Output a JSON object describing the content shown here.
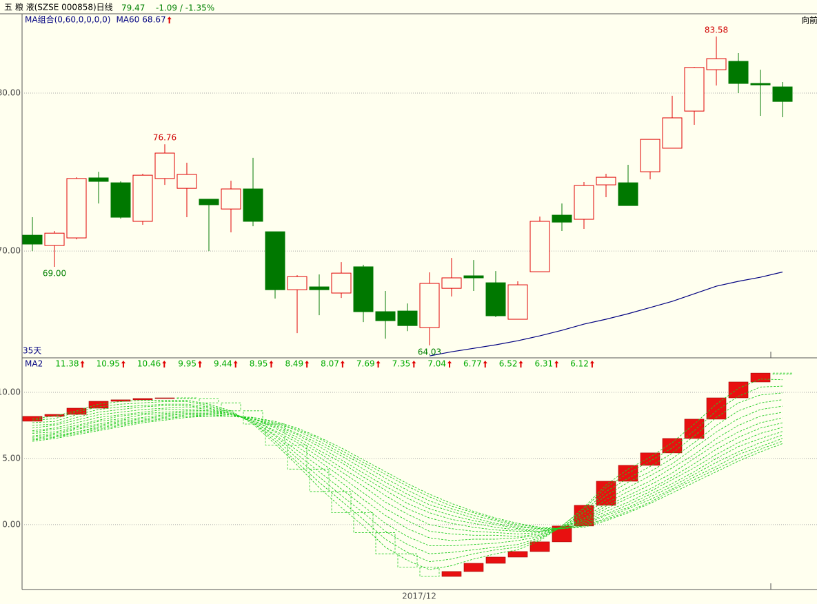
{
  "header": {
    "title": "五 粮 液(SZSE 000858)日线",
    "price": 79.47,
    "change": "-1.09 / -1.35%",
    "nav": "向前"
  },
  "chart_data": [
    {
      "type": "candlestick",
      "subtitle": "MA组合(0,60,0,0,0,0)",
      "period_label": "35天",
      "open": [
        71.0,
        70.35,
        70.83,
        74.63,
        74.32,
        71.88,
        74.59,
        73.97,
        73.28,
        72.66,
        73.93,
        71.22,
        67.55,
        67.73,
        67.34,
        69.0,
        66.16,
        66.2,
        65.15,
        67.64,
        68.43,
        67.99,
        65.68,
        68.69,
        72.27,
        72.01,
        74.19,
        74.32,
        75.02,
        76.51,
        78.86,
        81.48,
        82.01,
        80.61,
        80.39
      ],
      "high": [
        72.14,
        71.27,
        74.67,
        75.02,
        74.41,
        74.89,
        76.76,
        75.59,
        73.28,
        74.45,
        75.9,
        71.22,
        68.47,
        68.52,
        69.3,
        69.13,
        67.47,
        66.68,
        68.65,
        69.56,
        69.43,
        68.73,
        68.08,
        72.18,
        73.01,
        74.37,
        74.89,
        75.46,
        77.07,
        79.83,
        81.66,
        83.58,
        82.53,
        81.48,
        80.7
      ],
      "low": [
        70.0,
        69.0,
        70.74,
        73.01,
        72.05,
        71.66,
        74.19,
        72.14,
        70.0,
        71.18,
        71.57,
        66.99,
        64.8,
        65.94,
        67.03,
        65.5,
        64.45,
        64.93,
        64.03,
        67.12,
        67.47,
        65.81,
        65.68,
        68.69,
        71.27,
        71.4,
        73.41,
        72.88,
        74.54,
        76.51,
        77.99,
        80.48,
        80.0,
        78.56,
        78.47
      ],
      "close": [
        70.44,
        71.13,
        74.59,
        74.41,
        72.14,
        74.8,
        76.2,
        74.85,
        72.93,
        73.93,
        71.88,
        67.55,
        68.38,
        67.55,
        68.6,
        66.16,
        65.59,
        65.28,
        67.95,
        68.3,
        68.3,
        65.9,
        67.86,
        71.88,
        71.83,
        74.15,
        74.67,
        72.88,
        77.07,
        78.43,
        81.62,
        82.18,
        80.61,
        80.52,
        79.47
      ],
      "high_labels": [
        null,
        null,
        null,
        null,
        null,
        null,
        "76.76",
        null,
        null,
        null,
        null,
        null,
        null,
        null,
        null,
        null,
        null,
        null,
        null,
        null,
        null,
        null,
        null,
        null,
        null,
        null,
        null,
        null,
        null,
        null,
        null,
        "83.58",
        null,
        null,
        null
      ],
      "low_labels": [
        null,
        "69.00",
        null,
        null,
        null,
        null,
        null,
        null,
        null,
        null,
        null,
        null,
        null,
        null,
        null,
        null,
        null,
        null,
        "64.03",
        null,
        null,
        null,
        null,
        null,
        null,
        null,
        null,
        null,
        null,
        null,
        null,
        null,
        null,
        null,
        null
      ],
      "up_color": "#e00000",
      "down_color": "#007800",
      "ylim": [
        63.28,
        85.02
      ],
      "yticks": [
        {
          "value": 70,
          "label": "70.00"
        },
        {
          "value": 80,
          "label": "80.00"
        }
      ],
      "grid": true,
      "series": [
        {
          "name": "MA60",
          "color": "#000080",
          "values": [
            null,
            null,
            null,
            null,
            null,
            null,
            null,
            null,
            null,
            null,
            null,
            null,
            null,
            null,
            null,
            null,
            null,
            null,
            63.36,
            63.62,
            63.84,
            64.06,
            64.32,
            64.63,
            64.98,
            65.37,
            65.68,
            66.03,
            66.42,
            66.81,
            67.29,
            67.77,
            68.08,
            68.34,
            68.67
          ]
        }
      ]
    },
    {
      "type": "line",
      "xlabel": "2017/12",
      "ylim": [
        -4.9,
        12.55
      ],
      "yticks": [
        {
          "value": 0,
          "label": "0.00"
        },
        {
          "value": 5,
          "label": "5.00"
        },
        {
          "value": 10,
          "label": "10.00"
        }
      ],
      "grid": true,
      "series": [
        {
          "name": "MA2",
          "color": "#e81010",
          "down_color": "#22cc22",
          "values": [
            8.18,
            8.33,
            8.8,
            9.32,
            9.43,
            9.53,
            9.58,
            9.53,
            9.2,
            8.6,
            7.6,
            6.0,
            4.2,
            2.5,
            0.9,
            -0.6,
            -2.2,
            -3.2,
            -3.91,
            -3.54,
            -2.92,
            -2.45,
            -2.03,
            -1.3,
            -0.1,
            1.46,
            3.28,
            4.48,
            5.42,
            6.51,
            7.97,
            9.58,
            10.78,
            11.45,
            11.38
          ]
        },
        {
          "color": "#22cc22",
          "values": [
            8.0,
            8.2,
            8.6,
            9.1,
            9.3,
            9.4,
            9.4,
            9.4,
            9.1,
            8.6,
            7.6,
            6.1,
            4.5,
            2.8,
            1.3,
            -0.1,
            -1.7,
            -2.7,
            -3.4,
            -3.1,
            -2.6,
            -2.2,
            -1.9,
            -1.2,
            -0.1,
            1.3,
            3.0,
            4.2,
            5.1,
            6.2,
            7.6,
            9.1,
            10.3,
            11.0,
            10.95
          ]
        },
        {
          "color": "#22cc22",
          "values": [
            7.9,
            8.0,
            8.5,
            8.9,
            9.1,
            9.2,
            9.3,
            9.3,
            9.0,
            8.5,
            7.7,
            6.3,
            4.7,
            3.2,
            1.8,
            0.4,
            -1.1,
            -2.1,
            -2.8,
            -2.6,
            -2.2,
            -1.9,
            -1.7,
            -1.1,
            -0.1,
            1.2,
            2.8,
            3.9,
            4.8,
            5.8,
            7.1,
            8.6,
            9.7,
            10.4,
            10.46
          ]
        },
        {
          "color": "#22cc22",
          "values": [
            7.7,
            7.8,
            8.3,
            8.7,
            8.9,
            9.0,
            9.1,
            9.1,
            8.9,
            8.5,
            7.7,
            6.5,
            5.0,
            3.6,
            2.2,
            0.9,
            -0.5,
            -1.5,
            -2.2,
            -2.1,
            -1.9,
            -1.7,
            -1.5,
            -1.0,
            -0.2,
            1.0,
            2.5,
            3.5,
            4.4,
            5.4,
            6.7,
            8.1,
            9.2,
            9.8,
            9.95
          ]
        },
        {
          "color": "#22cc22",
          "values": [
            7.5,
            7.6,
            8.1,
            8.5,
            8.7,
            8.9,
            9.0,
            9.0,
            8.8,
            8.4,
            7.8,
            6.7,
            5.3,
            4.0,
            2.7,
            1.4,
            0.1,
            -0.9,
            -1.6,
            -1.6,
            -1.5,
            -1.4,
            -1.2,
            -0.9,
            -0.2,
            0.9,
            2.2,
            3.2,
            4.0,
            5.0,
            6.2,
            7.5,
            8.6,
            9.2,
            9.44
          ]
        },
        {
          "color": "#22cc22",
          "values": [
            7.3,
            7.5,
            7.9,
            8.3,
            8.5,
            8.7,
            8.8,
            8.9,
            8.7,
            8.4,
            7.8,
            6.8,
            5.6,
            4.4,
            3.2,
            1.9,
            0.7,
            -0.3,
            -1.0,
            -1.2,
            -1.1,
            -1.1,
            -1.0,
            -0.8,
            -0.2,
            0.7,
            1.9,
            2.8,
            3.7,
            4.6,
            5.8,
            7.0,
            8.0,
            8.7,
            8.95
          ]
        },
        {
          "color": "#22cc22",
          "values": [
            7.1,
            7.3,
            7.7,
            8.1,
            8.3,
            8.5,
            8.7,
            8.7,
            8.6,
            8.4,
            7.9,
            7.0,
            5.9,
            4.8,
            3.6,
            2.4,
            1.2,
            0.3,
            -0.5,
            -0.7,
            -0.8,
            -0.8,
            -0.9,
            -0.7,
            -0.2,
            0.5,
            1.6,
            2.5,
            3.3,
            4.3,
            5.3,
            6.5,
            7.5,
            8.2,
            8.49
          ]
        },
        {
          "color": "#22cc22",
          "values": [
            7.0,
            7.2,
            7.5,
            7.9,
            8.2,
            8.4,
            8.5,
            8.6,
            8.6,
            8.3,
            7.9,
            7.1,
            6.2,
            5.1,
            4.0,
            2.9,
            1.7,
            0.8,
            0.0,
            -0.3,
            -0.5,
            -0.6,
            -0.7,
            -0.6,
            -0.2,
            0.4,
            1.4,
            2.2,
            3.0,
            3.9,
            5.0,
            6.1,
            7.0,
            7.7,
            8.07
          ]
        },
        {
          "color": "#22cc22",
          "values": [
            6.9,
            7.0,
            7.4,
            7.8,
            8.0,
            8.3,
            8.4,
            8.5,
            8.5,
            8.3,
            8.0,
            7.3,
            6.4,
            5.4,
            4.3,
            3.3,
            2.2,
            1.2,
            0.5,
            0.1,
            -0.2,
            -0.4,
            -0.5,
            -0.5,
            -0.2,
            0.3,
            1.2,
            2.0,
            2.7,
            3.6,
            4.6,
            5.7,
            6.6,
            7.3,
            7.69
          ]
        },
        {
          "color": "#22cc22",
          "values": [
            6.7,
            6.9,
            7.3,
            7.6,
            7.9,
            8.1,
            8.3,
            8.4,
            8.4,
            8.3,
            8.0,
            7.4,
            6.6,
            5.6,
            4.7,
            3.6,
            2.6,
            1.6,
            0.9,
            0.4,
            0.1,
            -0.2,
            -0.4,
            -0.5,
            -0.3,
            0.2,
            1.0,
            1.7,
            2.5,
            3.4,
            4.3,
            5.3,
            6.2,
            6.9,
            7.35
          ]
        },
        {
          "color": "#22cc22",
          "values": [
            6.6,
            6.8,
            7.2,
            7.5,
            7.8,
            8.0,
            8.2,
            8.4,
            8.4,
            8.3,
            8.0,
            7.5,
            6.8,
            5.9,
            4.9,
            3.9,
            2.9,
            2.0,
            1.2,
            0.7,
            0.3,
            0.0,
            -0.3,
            -0.4,
            -0.3,
            0.1,
            0.8,
            1.5,
            2.3,
            3.1,
            4.0,
            5.0,
            5.9,
            6.5,
            7.04
          ]
        },
        {
          "color": "#22cc22",
          "values": [
            6.5,
            6.7,
            7.0,
            7.4,
            7.7,
            7.9,
            8.1,
            8.3,
            8.3,
            8.2,
            8.0,
            7.6,
            6.9,
            6.1,
            5.2,
            4.2,
            3.2,
            2.3,
            1.5,
            1.0,
            0.5,
            0.1,
            -0.2,
            -0.3,
            -0.3,
            0.0,
            0.7,
            1.3,
            2.1,
            2.9,
            3.8,
            4.7,
            5.5,
            6.2,
            6.77
          ]
        },
        {
          "color": "#22cc22",
          "values": [
            6.4,
            6.6,
            7.0,
            7.3,
            7.6,
            7.8,
            8.0,
            8.2,
            8.3,
            8.2,
            8.1,
            7.7,
            7.1,
            6.3,
            5.4,
            4.5,
            3.5,
            2.6,
            1.8,
            1.2,
            0.7,
            0.3,
            -0.1,
            -0.3,
            -0.3,
            -0.1,
            0.5,
            1.2,
            1.9,
            2.7,
            3.6,
            4.4,
            5.3,
            5.9,
            6.52
          ]
        },
        {
          "color": "#22cc22",
          "values": [
            6.4,
            6.6,
            6.9,
            7.2,
            7.5,
            7.8,
            8.0,
            8.2,
            8.2,
            8.2,
            8.1,
            7.7,
            7.2,
            6.5,
            5.6,
            4.7,
            3.8,
            2.9,
            2.1,
            1.4,
            0.9,
            0.4,
            0.0,
            -0.2,
            -0.3,
            -0.1,
            0.4,
            1.0,
            1.7,
            2.6,
            3.4,
            4.2,
            5.0,
            5.7,
            6.31
          ]
        },
        {
          "color": "#22cc22",
          "values": [
            6.3,
            6.5,
            6.8,
            7.1,
            7.4,
            7.7,
            7.9,
            8.1,
            8.2,
            8.2,
            8.1,
            7.8,
            7.3,
            6.6,
            5.8,
            4.9,
            4.0,
            3.1,
            2.3,
            1.6,
            1.0,
            0.5,
            0.1,
            -0.2,
            -0.3,
            -0.2,
            0.3,
            0.9,
            1.6,
            2.4,
            3.2,
            4.0,
            4.8,
            5.5,
            6.12
          ]
        }
      ]
    }
  ]
}
